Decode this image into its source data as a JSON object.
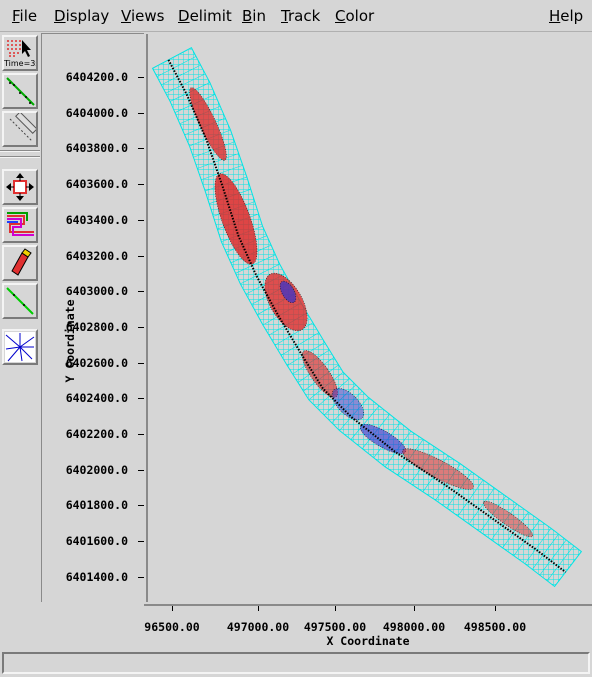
{
  "menubar": {
    "items": [
      {
        "pre": "",
        "u": "F",
        "post": "ile"
      },
      {
        "pre": "",
        "u": "D",
        "post": "isplay"
      },
      {
        "pre": "",
        "u": "V",
        "post": "iews"
      },
      {
        "pre": "",
        "u": "D",
        "post": "elimit"
      },
      {
        "pre": "",
        "u": "B",
        "post": "in"
      },
      {
        "pre": "",
        "u": "T",
        "post": "rack"
      },
      {
        "pre": "",
        "u": "C",
        "post": "olor"
      }
    ],
    "help": {
      "pre": "",
      "u": "H",
      "post": "elp"
    }
  },
  "toolbar": {
    "select_tool_label": "Time=3s",
    "tools": [
      "select-tool-icon",
      "green-dots-icon",
      "brush-tool-icon",
      "pan-arrows-icon",
      "color-lines-icon",
      "eraser-icon",
      "green-line-icon",
      "starburst-icon"
    ]
  },
  "axes": {
    "xlabel": "X Coordinate",
    "ylabel": "Y Coordinate",
    "x_ticks": [
      "96500.00",
      "497000.00",
      "497500.00",
      "498000.00",
      "498500.00"
    ],
    "y_ticks": [
      "6404200.0",
      "6404000.0",
      "6403800.0",
      "6403600.0",
      "6403400.0",
      "6403200.0",
      "6403000.0",
      "6402800.0",
      "6402600.0",
      "6402400.0",
      "6402200.0",
      "6402000.0",
      "6401800.0",
      "6401600.0",
      "6401400.0"
    ]
  },
  "colors": {
    "swath": "#00e5e5",
    "high": "#e02020",
    "low": "#3030d0",
    "edge": "#000000"
  },
  "statusbar": {
    "text": ""
  }
}
